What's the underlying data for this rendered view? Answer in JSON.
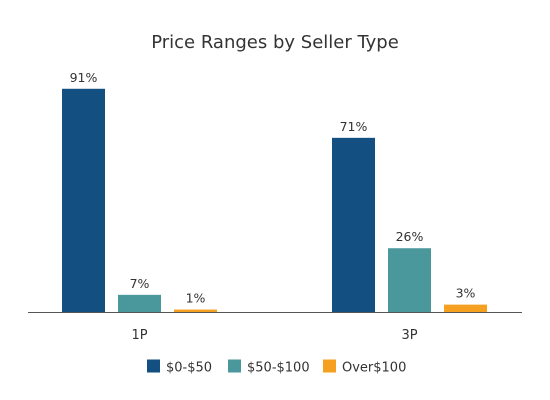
{
  "chart_data": {
    "type": "bar",
    "title": "Price Ranges by Seller Type",
    "categories": [
      "1P",
      "3P"
    ],
    "series": [
      {
        "name": "$0-$50",
        "color": "#134f80",
        "values": [
          91,
          71
        ],
        "labels": [
          "91%",
          "71%"
        ]
      },
      {
        "name": "$50-$100",
        "color": "#4a979c",
        "values": [
          7,
          26
        ],
        "labels": [
          "7%",
          "26%"
        ]
      },
      {
        "name": "Over$100",
        "color": "#f5a020",
        "values": [
          1,
          3
        ],
        "labels": [
          "1%",
          "3%"
        ]
      }
    ],
    "ylim": [
      0,
      100
    ],
    "grid": false,
    "legend": "bottom",
    "axis_color": "#555555"
  }
}
